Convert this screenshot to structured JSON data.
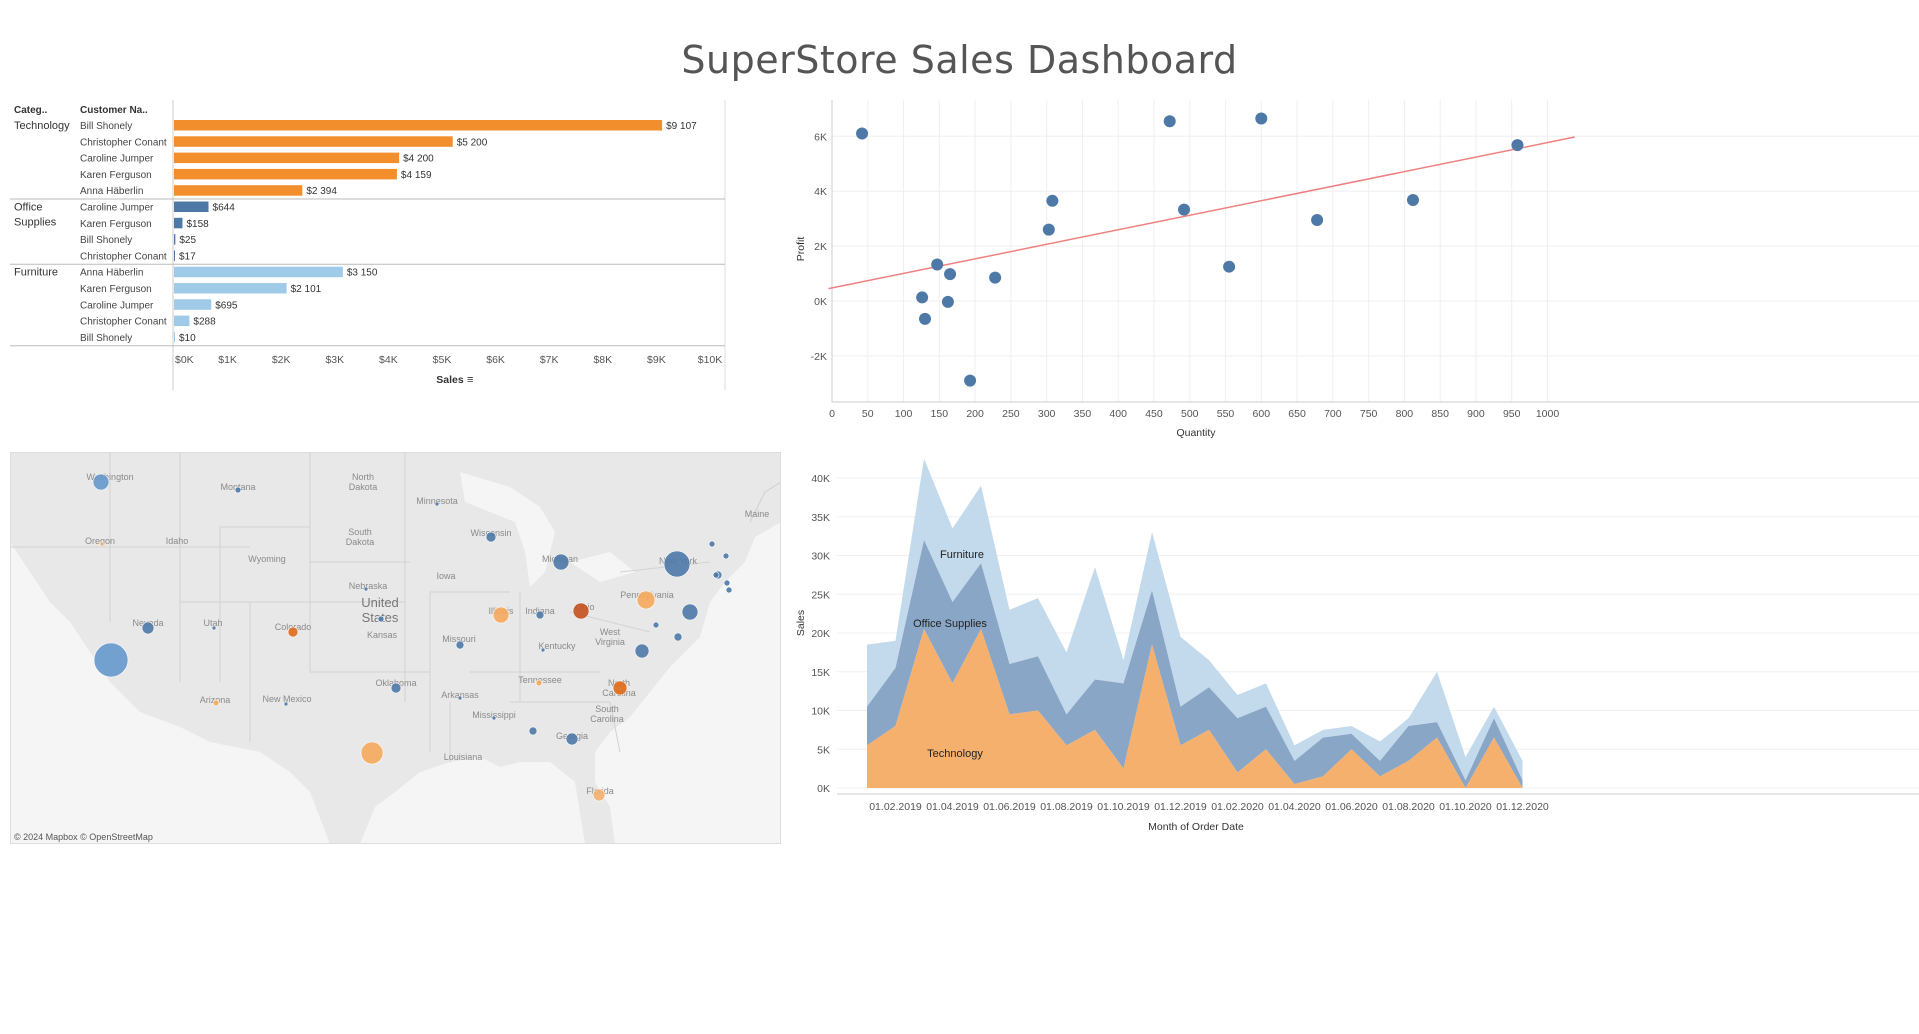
{
  "dashboard": {
    "title": "SuperStore Sales Dashboard"
  },
  "colors": {
    "technology": "#f28e2b",
    "office_supplies": "#4e79a7",
    "furniture": "#a0cbe8",
    "scatter_point": "#4e79a7",
    "trend_line": "#f08080",
    "area_technology": "#f5b06e",
    "area_office": "#8aa6c6",
    "area_furniture": "#c3daec",
    "map_land": "#e8e8e8",
    "map_water": "#f5f5f5"
  },
  "map": {
    "credit": "© 2024 Mapbox © OpenStreetMap",
    "labels": [
      "Washington",
      "Montana",
      "North Dakota",
      "Minnesota",
      "Oregon",
      "Idaho",
      "South Dakota",
      "Wisconsin",
      "Wyoming",
      "Michigan",
      "New York",
      "Maine",
      "Nebraska",
      "Iowa",
      "Nevada",
      "Utah",
      "Colorado",
      "Kansas",
      "Illinois",
      "Indiana",
      "Ohio",
      "Pennsylvania",
      "West Virginia",
      "Missouri",
      "Kentucky",
      "Oklahoma",
      "Arizona",
      "New Mexico",
      "Tennessee",
      "North Carolina",
      "South Carolina",
      "Arkansas",
      "Mississippi",
      "Georgia",
      "Louisiana",
      "Florida"
    ],
    "country_label": "United States"
  },
  "chart_data": [
    {
      "type": "bar",
      "orientation": "horizontal",
      "header_category": "Categ..",
      "header_customer": "Customer Na..",
      "xlabel": "Sales",
      "xlim": [
        0,
        10000
      ],
      "x_ticks": [
        "$0K",
        "$1K",
        "$2K",
        "$3K",
        "$4K",
        "$5K",
        "$6K",
        "$7K",
        "$8K",
        "$9K",
        "$10K"
      ],
      "groups": [
        {
          "category": "Technology",
          "rows": [
            {
              "customer": "Bill Shonely",
              "value": 9107,
              "label": "$9 107"
            },
            {
              "customer": "Christopher Conant",
              "value": 5200,
              "label": "$5 200"
            },
            {
              "customer": "Caroline Jumper",
              "value": 4200,
              "label": "$4 200"
            },
            {
              "customer": "Karen Ferguson",
              "value": 4159,
              "label": "$4 159"
            },
            {
              "customer": "Anna Häberlin",
              "value": 2394,
              "label": "$2 394"
            }
          ]
        },
        {
          "category": "Office Supplies",
          "rows": [
            {
              "customer": "Caroline Jumper",
              "value": 644,
              "label": "$644"
            },
            {
              "customer": "Karen Ferguson",
              "value": 158,
              "label": "$158"
            },
            {
              "customer": "Bill Shonely",
              "value": 25,
              "label": "$25"
            },
            {
              "customer": "Christopher Conant",
              "value": 17,
              "label": "$17"
            }
          ]
        },
        {
          "category": "Furniture",
          "rows": [
            {
              "customer": "Anna Häberlin",
              "value": 3150,
              "label": "$3 150"
            },
            {
              "customer": "Karen Ferguson",
              "value": 2101,
              "label": "$2 101"
            },
            {
              "customer": "Caroline Jumper",
              "value": 695,
              "label": "$695"
            },
            {
              "customer": "Christopher Conant",
              "value": 288,
              "label": "$288"
            },
            {
              "customer": "Bill Shonely",
              "value": 10,
              "label": "$10"
            }
          ]
        }
      ]
    },
    {
      "type": "scatter",
      "xlabel": "Quantity",
      "ylabel": "Profit",
      "xlim": [
        0,
        1020
      ],
      "ylim": [
        -3200,
        7000
      ],
      "x_ticks": [
        0,
        50,
        100,
        150,
        200,
        250,
        300,
        350,
        400,
        450,
        500,
        550,
        600,
        650,
        700,
        750,
        800,
        850,
        900,
        950,
        1000
      ],
      "y_ticks": [
        {
          "v": -2000,
          "t": "-2K"
        },
        {
          "v": 0,
          "t": "0K"
        },
        {
          "v": 2000,
          "t": "2K"
        },
        {
          "v": 4000,
          "t": "4K"
        },
        {
          "v": 6000,
          "t": "6K"
        }
      ],
      "points": [
        {
          "x": 42,
          "y": 6100
        },
        {
          "x": 472,
          "y": 6550
        },
        {
          "x": 600,
          "y": 6650
        },
        {
          "x": 958,
          "y": 5680
        },
        {
          "x": 308,
          "y": 3650
        },
        {
          "x": 492,
          "y": 3330
        },
        {
          "x": 678,
          "y": 2950
        },
        {
          "x": 812,
          "y": 3680
        },
        {
          "x": 303,
          "y": 2600
        },
        {
          "x": 147,
          "y": 1330
        },
        {
          "x": 165,
          "y": 980
        },
        {
          "x": 228,
          "y": 850
        },
        {
          "x": 555,
          "y": 1250
        },
        {
          "x": 126,
          "y": 130
        },
        {
          "x": 162,
          "y": -30
        },
        {
          "x": 130,
          "y": -650
        },
        {
          "x": 193,
          "y": -2900
        }
      ],
      "trend_line": [
        {
          "x": -5,
          "y": 450
        },
        {
          "x": 1010,
          "y": 5900
        }
      ]
    },
    {
      "type": "area",
      "stacked": true,
      "xlabel": "Month of Order Date",
      "ylabel": "Sales",
      "ylim": [
        0,
        44000
      ],
      "x_tick_labels": [
        "01.02.2019",
        "01.04.2019",
        "01.06.2019",
        "01.08.2019",
        "01.10.2019",
        "01.12.2019",
        "01.02.2020",
        "01.04.2020",
        "01.06.2020",
        "01.08.2020",
        "01.10.2020",
        "01.12.2020"
      ],
      "y_ticks": [
        {
          "v": 0,
          "t": "0K"
        },
        {
          "v": 5000,
          "t": "5K"
        },
        {
          "v": 10000,
          "t": "10K"
        },
        {
          "v": 15000,
          "t": "15K"
        },
        {
          "v": 20000,
          "t": "20K"
        },
        {
          "v": 25000,
          "t": "25K"
        },
        {
          "v": 30000,
          "t": "30K"
        },
        {
          "v": 35000,
          "t": "35K"
        },
        {
          "v": 40000,
          "t": "40K"
        }
      ],
      "series": [
        {
          "name": "Technology",
          "values": [
            5500,
            8000,
            20500,
            13500,
            20500,
            9500,
            10000,
            5500,
            7500,
            2500,
            18500,
            5500,
            7500,
            2000,
            5000,
            500,
            1500,
            5000,
            1500,
            3500,
            6500,
            0,
            6500,
            0
          ]
        },
        {
          "name": "Office Supplies",
          "values": [
            5000,
            7500,
            11500,
            10500,
            8500,
            6500,
            7000,
            4000,
            6500,
            11000,
            7000,
            5000,
            5500,
            7000,
            5500,
            3000,
            5000,
            2000,
            2000,
            4500,
            2000,
            1000,
            2500,
            1000
          ]
        },
        {
          "name": "Furniture",
          "values": [
            8000,
            3500,
            10500,
            9500,
            10000,
            7000,
            7500,
            8000,
            14500,
            3000,
            7500,
            9000,
            3500,
            3000,
            3000,
            2000,
            1000,
            1000,
            2500,
            1000,
            6500,
            3000,
            1500,
            2500
          ]
        }
      ]
    }
  ]
}
